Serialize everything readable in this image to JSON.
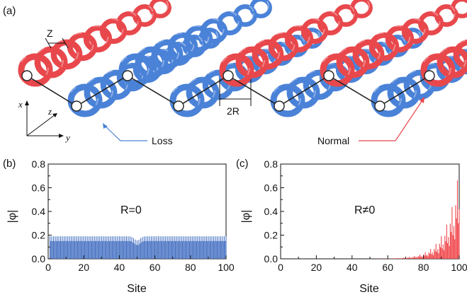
{
  "figure": {
    "panel_labels": {
      "a": "(a)",
      "b": "(b)",
      "c": "(c)"
    },
    "schematic": {
      "z_period_label": "Z",
      "radius_label": "2R",
      "loss_label": "Loss",
      "normal_label": "Normal",
      "axes": {
        "x": "x",
        "y": "y",
        "z": "z"
      },
      "colors": {
        "normal": "#e8484c",
        "loss": "#4a82d8"
      }
    }
  },
  "chart_data": [
    {
      "type": "bar",
      "panel": "(b)",
      "annotation": "R=0",
      "xlabel": "Site",
      "ylabel": "|φ|",
      "xlim": [
        0,
        100
      ],
      "ylim": [
        0,
        0.8
      ],
      "xticks": [
        "0",
        "20",
        "40",
        "60",
        "80",
        "100"
      ],
      "yticks": [
        "0.0",
        "0.2",
        "0.4",
        "0.6",
        "0.8"
      ],
      "color": "#4a74c4",
      "x": [
        1,
        100
      ],
      "values_description_free": true,
      "envelope": {
        "upper": 0.19,
        "lower": 0.12,
        "dip_at": 50,
        "dip_value": 0.15
      }
    },
    {
      "type": "bar",
      "panel": "(c)",
      "annotation": "R≠0",
      "xlabel": "Site",
      "ylabel": "|φ|",
      "xlim": [
        0,
        100
      ],
      "ylim": [
        0,
        0.8
      ],
      "xticks": [
        "0",
        "20",
        "40",
        "60",
        "80",
        "100"
      ],
      "yticks": [
        "0.0",
        "0.2",
        "0.4",
        "0.6",
        "0.8"
      ],
      "color": "#f0484c",
      "x": [
        1,
        100
      ],
      "envelope": {
        "peak_site": 100,
        "peak_value": 0.79,
        "onset_site": 60
      }
    }
  ]
}
